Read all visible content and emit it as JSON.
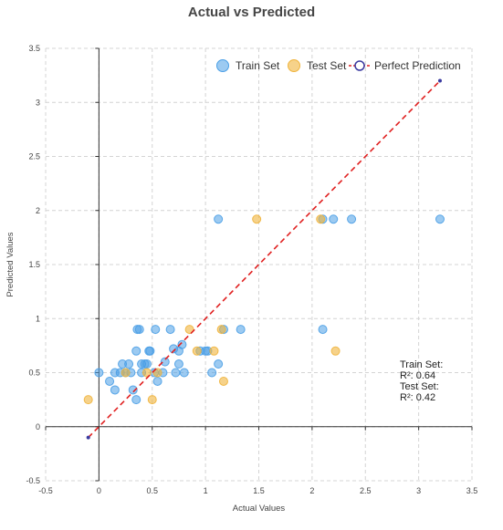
{
  "chart_data": {
    "type": "scatter",
    "title": "Actual vs Predicted",
    "xlabel": "Actual Values",
    "ylabel": "Predicted Values",
    "xlim": [
      -0.5,
      3.5
    ],
    "ylim": [
      -0.5,
      3.5
    ],
    "xticks": [
      "-0.5",
      "0",
      "0.5",
      "1",
      "1.5",
      "2",
      "2.5",
      "3",
      "3.5"
    ],
    "yticks": [
      "-0.5",
      "0",
      "0.5",
      "1",
      "1.5",
      "2",
      "2.5",
      "3",
      "3.5"
    ],
    "grid": true,
    "legend_position": "top-right",
    "series": [
      {
        "name": "Train Set",
        "color": "#4a9fe6",
        "points": [
          [
            0.0,
            0.5
          ],
          [
            0.1,
            0.42
          ],
          [
            0.15,
            0.5
          ],
          [
            0.15,
            0.34
          ],
          [
            0.2,
            0.5
          ],
          [
            0.22,
            0.58
          ],
          [
            0.25,
            0.5
          ],
          [
            0.28,
            0.58
          ],
          [
            0.3,
            0.5
          ],
          [
            0.32,
            0.34
          ],
          [
            0.35,
            0.25
          ],
          [
            0.35,
            0.7
          ],
          [
            0.36,
            0.9
          ],
          [
            0.38,
            0.9
          ],
          [
            0.4,
            0.58
          ],
          [
            0.4,
            0.5
          ],
          [
            0.43,
            0.58
          ],
          [
            0.45,
            0.58
          ],
          [
            0.47,
            0.7
          ],
          [
            0.48,
            0.7
          ],
          [
            0.52,
            0.5
          ],
          [
            0.53,
            0.9
          ],
          [
            0.55,
            0.42
          ],
          [
            0.6,
            0.5
          ],
          [
            0.62,
            0.6
          ],
          [
            0.67,
            0.9
          ],
          [
            0.7,
            0.72
          ],
          [
            0.72,
            0.5
          ],
          [
            0.75,
            0.58
          ],
          [
            0.75,
            0.7
          ],
          [
            0.78,
            0.76
          ],
          [
            0.8,
            0.5
          ],
          [
            0.95,
            0.7
          ],
          [
            1.0,
            0.7
          ],
          [
            1.02,
            0.7
          ],
          [
            1.06,
            0.5
          ],
          [
            1.12,
            1.92
          ],
          [
            1.12,
            0.58
          ],
          [
            1.17,
            0.9
          ],
          [
            1.33,
            0.9
          ],
          [
            2.1,
            1.92
          ],
          [
            2.1,
            0.9
          ],
          [
            2.2,
            1.92
          ],
          [
            2.37,
            1.92
          ],
          [
            3.2,
            1.92
          ]
        ]
      },
      {
        "name": "Test Set",
        "color": "#f0b43c",
        "points": [
          [
            -0.1,
            0.25
          ],
          [
            0.25,
            0.5
          ],
          [
            0.45,
            0.5
          ],
          [
            0.5,
            0.25
          ],
          [
            0.55,
            0.5
          ],
          [
            0.85,
            0.9
          ],
          [
            0.92,
            0.7
          ],
          [
            1.08,
            0.7
          ],
          [
            1.15,
            0.9
          ],
          [
            1.17,
            0.42
          ],
          [
            1.48,
            1.92
          ],
          [
            2.08,
            1.92
          ],
          [
            2.22,
            0.7
          ]
        ]
      },
      {
        "name": "Perfect Prediction",
        "color": "#e02020",
        "marker_color": "#3a3aa0",
        "line": [
          [
            -0.1,
            -0.1
          ],
          [
            3.2,
            3.2
          ]
        ]
      }
    ],
    "annotation": {
      "lines": [
        "Train Set:",
        "R²: 0.64",
        "Test Set:",
        "R²: 0.42"
      ]
    }
  }
}
